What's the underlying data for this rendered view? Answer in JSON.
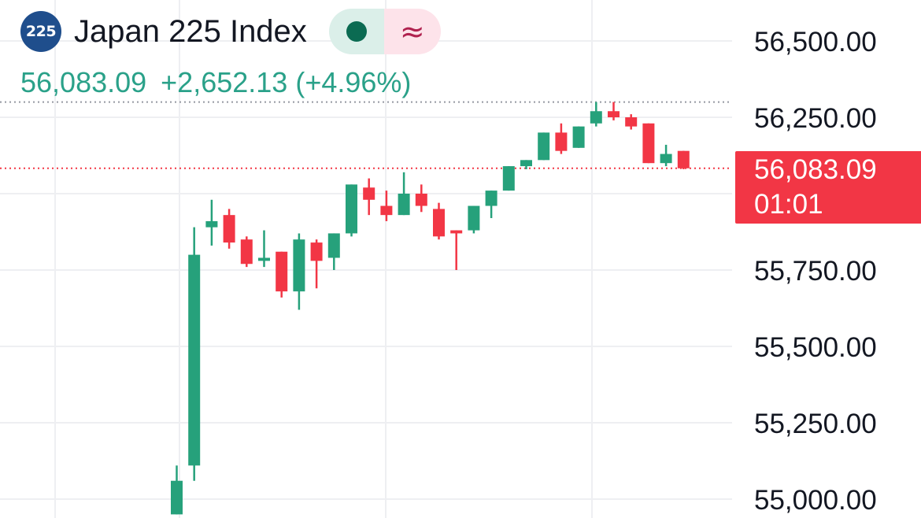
{
  "header": {
    "symbol_badge": "225",
    "title": "Japan 225 Index",
    "market_status_icon": "circle-dot-icon",
    "market_status_color": "#0b6b52",
    "realtime_icon": "approx-icon",
    "realtime_glyph": "≈"
  },
  "quote": {
    "last": "56,083.09",
    "change": "+2,652.13",
    "change_pct": "(+4.96%)",
    "color": "#2aa189"
  },
  "price_tag": {
    "price": "56,083.09",
    "countdown": "01:01",
    "color": "#f23645"
  },
  "colors": {
    "up": "#26a17b",
    "down": "#f23645",
    "grid": "#eeeff2",
    "axis_text": "#131722"
  },
  "chart_data": {
    "type": "candlestick",
    "title": "Japan 225 Index",
    "y_axis": {
      "side": "right",
      "ticks": [
        55000,
        55250,
        55500,
        55750,
        56000,
        56250,
        56500
      ],
      "tick_labels": [
        "55,000.00",
        "55,250.00",
        "55,500.00",
        "55,750.00",
        "",
        "56,250.00",
        "56,500.00"
      ]
    },
    "ylim": [
      54950,
      56580
    ],
    "grid": true,
    "last_price": 56083.09,
    "day_high": 56300,
    "candles": [
      {
        "o": 54950,
        "h": 55110,
        "l": 54950,
        "c": 55060
      },
      {
        "o": 55110,
        "h": 55890,
        "l": 55060,
        "c": 55800
      },
      {
        "o": 55890,
        "h": 55980,
        "l": 55830,
        "c": 55910
      },
      {
        "o": 55930,
        "h": 55950,
        "l": 55820,
        "c": 55840
      },
      {
        "o": 55850,
        "h": 55860,
        "l": 55760,
        "c": 55770
      },
      {
        "o": 55780,
        "h": 55880,
        "l": 55760,
        "c": 55790
      },
      {
        "o": 55810,
        "h": 55810,
        "l": 55660,
        "c": 55680
      },
      {
        "o": 55680,
        "h": 55870,
        "l": 55620,
        "c": 55850
      },
      {
        "o": 55840,
        "h": 55850,
        "l": 55690,
        "c": 55780
      },
      {
        "o": 55790,
        "h": 55870,
        "l": 55750,
        "c": 55870
      },
      {
        "o": 55870,
        "h": 56030,
        "l": 55860,
        "c": 56030
      },
      {
        "o": 56020,
        "h": 56050,
        "l": 55930,
        "c": 55980
      },
      {
        "o": 55960,
        "h": 56010,
        "l": 55910,
        "c": 55930
      },
      {
        "o": 55930,
        "h": 56070,
        "l": 55930,
        "c": 56000
      },
      {
        "o": 56000,
        "h": 56030,
        "l": 55940,
        "c": 55960
      },
      {
        "o": 55950,
        "h": 55970,
        "l": 55850,
        "c": 55860
      },
      {
        "o": 55880,
        "h": 55880,
        "l": 55750,
        "c": 55870
      },
      {
        "o": 55880,
        "h": 55960,
        "l": 55870,
        "c": 55960
      },
      {
        "o": 55960,
        "h": 56010,
        "l": 55920,
        "c": 56010
      },
      {
        "o": 56010,
        "h": 56090,
        "l": 56010,
        "c": 56090
      },
      {
        "o": 56090,
        "h": 56110,
        "l": 56080,
        "c": 56110
      },
      {
        "o": 56110,
        "h": 56200,
        "l": 56110,
        "c": 56200
      },
      {
        "o": 56200,
        "h": 56230,
        "l": 56130,
        "c": 56140
      },
      {
        "o": 56150,
        "h": 56220,
        "l": 56150,
        "c": 56220
      },
      {
        "o": 56230,
        "h": 56300,
        "l": 56220,
        "c": 56270
      },
      {
        "o": 56270,
        "h": 56300,
        "l": 56240,
        "c": 56250
      },
      {
        "o": 56250,
        "h": 56260,
        "l": 56210,
        "c": 56220
      },
      {
        "o": 56230,
        "h": 56230,
        "l": 56100,
        "c": 56100
      },
      {
        "o": 56100,
        "h": 56160,
        "l": 56090,
        "c": 56130
      },
      {
        "o": 56140,
        "h": 56140,
        "l": 56080,
        "c": 56083.09
      }
    ]
  }
}
